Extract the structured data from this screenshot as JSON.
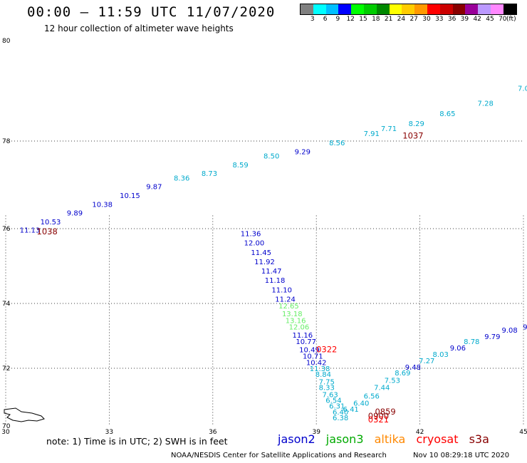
{
  "header": {
    "title": "00:00 – 11:59 UTC 11/07/2020",
    "subtitle": "12 hour collection of altimeter wave heights"
  },
  "colorbar": {
    "unit": "(ft)",
    "colors": [
      "#808080",
      "#00ffff",
      "#00bfff",
      "#0000ff",
      "#00ff00",
      "#00cc00",
      "#008800",
      "#ffff00",
      "#ffcc00",
      "#ff9900",
      "#ff0000",
      "#cc0000",
      "#880000",
      "#990099",
      "#bb99ff",
      "#ff88ff",
      "#000000"
    ],
    "labels": [
      "3",
      "6",
      "9",
      "12",
      "15",
      "18",
      "21",
      "24",
      "27",
      "30",
      "33",
      "36",
      "39",
      "42",
      "45",
      "70"
    ]
  },
  "axes": {
    "lon_ticks": [
      "30",
      "33",
      "36",
      "39",
      "42",
      "45"
    ],
    "lat_ticks": [
      "70",
      "72",
      "74",
      "76",
      "78",
      "80"
    ],
    "lon_range": [
      30,
      45
    ],
    "lat_range": [
      70,
      80
    ],
    "grid": true
  },
  "satellite_colors": {
    "jason2": "#0000cc",
    "jason3": "#00aa00",
    "altika": "#ff8800",
    "cryosat": "#ff0000",
    "s3a": "#880000",
    "track_cyan": "#00aacc",
    "track_green": "#66ee66"
  },
  "tracks": [
    {
      "color": "#00aacc",
      "label": "7.0",
      "lon": 45.0,
      "lat": 79.0
    },
    {
      "color": "#00aacc",
      "label": "7.28",
      "lon": 43.9,
      "lat": 78.7
    },
    {
      "color": "#00aacc",
      "label": "8.65",
      "lon": 42.8,
      "lat": 78.5
    },
    {
      "color": "#00aacc",
      "label": "8.29",
      "lon": 41.9,
      "lat": 78.3
    },
    {
      "color": "#00aacc",
      "label": "7.71",
      "lon": 41.1,
      "lat": 78.2
    },
    {
      "color": "#00aacc",
      "label": "7.91",
      "lon": 40.6,
      "lat": 78.1
    },
    {
      "color": "#00aacc",
      "label": "8.56",
      "lon": 39.6,
      "lat": 77.9
    },
    {
      "color": "#0000cc",
      "label": "9.29",
      "lon": 38.6,
      "lat": 77.7
    },
    {
      "color": "#00aacc",
      "label": "8.50",
      "lon": 37.7,
      "lat": 77.6
    },
    {
      "color": "#00aacc",
      "label": "8.59",
      "lon": 36.8,
      "lat": 77.4
    },
    {
      "color": "#00aacc",
      "label": "8.73",
      "lon": 35.9,
      "lat": 77.2
    },
    {
      "color": "#00aacc",
      "label": "8.36",
      "lon": 35.1,
      "lat": 77.1
    },
    {
      "color": "#0000cc",
      "label": "9.87",
      "lon": 34.3,
      "lat": 76.9
    },
    {
      "color": "#0000cc",
      "label": "10.15",
      "lon": 33.6,
      "lat": 76.7
    },
    {
      "color": "#0000cc",
      "label": "10.38",
      "lon": 32.8,
      "lat": 76.5
    },
    {
      "color": "#0000cc",
      "label": "9.89",
      "lon": 32.0,
      "lat": 76.3
    },
    {
      "color": "#0000cc",
      "label": "10.53",
      "lon": 31.3,
      "lat": 76.1
    },
    {
      "color": "#0000cc",
      "label": "11.13",
      "lon": 30.7,
      "lat": 75.9
    },
    {
      "color": "#0000cc",
      "label": "11.36",
      "lon": 37.1,
      "lat": 75.8
    },
    {
      "color": "#0000cc",
      "label": "12.00",
      "lon": 37.2,
      "lat": 75.55
    },
    {
      "color": "#0000cc",
      "label": "11.45",
      "lon": 37.4,
      "lat": 75.3
    },
    {
      "color": "#0000cc",
      "label": "11.92",
      "lon": 37.5,
      "lat": 75.05
    },
    {
      "color": "#0000cc",
      "label": "11.47",
      "lon": 37.7,
      "lat": 74.8
    },
    {
      "color": "#0000cc",
      "label": "11.18",
      "lon": 37.8,
      "lat": 74.55
    },
    {
      "color": "#0000cc",
      "label": "11.10",
      "lon": 38.0,
      "lat": 74.3
    },
    {
      "color": "#0000cc",
      "label": "11.24",
      "lon": 38.1,
      "lat": 74.05
    },
    {
      "color": "#66ee66",
      "label": "12.65",
      "lon": 38.2,
      "lat": 73.85
    },
    {
      "color": "#66ee66",
      "label": "13.18",
      "lon": 38.3,
      "lat": 73.6
    },
    {
      "color": "#66ee66",
      "label": "13.16",
      "lon": 38.4,
      "lat": 73.4
    },
    {
      "color": "#66ee66",
      "label": "12.06",
      "lon": 38.5,
      "lat": 73.2
    },
    {
      "color": "#0000cc",
      "label": "11.16",
      "lon": 38.6,
      "lat": 72.95
    },
    {
      "color": "#0000cc",
      "label": "10.77",
      "lon": 38.7,
      "lat": 72.75
    },
    {
      "color": "#0000cc",
      "label": "10.49",
      "lon": 38.8,
      "lat": 72.5
    },
    {
      "color": "#0000cc",
      "label": "10.71",
      "lon": 38.9,
      "lat": 72.3
    },
    {
      "color": "#0000cc",
      "label": "10.42",
      "lon": 39.0,
      "lat": 72.1
    },
    {
      "color": "#00aacc",
      "label": "11.38",
      "lon": 39.1,
      "lat": 71.9
    },
    {
      "color": "#00aacc",
      "label": "8.84",
      "lon": 39.2,
      "lat": 71.7
    },
    {
      "color": "#00aacc",
      "label": "7.75",
      "lon": 39.3,
      "lat": 71.45
    },
    {
      "color": "#00aacc",
      "label": "8.33",
      "lon": 39.3,
      "lat": 71.25
    },
    {
      "color": "#00aacc",
      "label": "7.63",
      "lon": 39.4,
      "lat": 71.0
    },
    {
      "color": "#00aacc",
      "label": "6.54",
      "lon": 39.5,
      "lat": 70.8
    },
    {
      "color": "#00aacc",
      "label": "6.31",
      "lon": 39.6,
      "lat": 70.6
    },
    {
      "color": "#00aacc",
      "label": "6.40",
      "lon": 39.7,
      "lat": 70.4
    },
    {
      "color": "#00aacc",
      "label": "6.38",
      "lon": 39.7,
      "lat": 70.2
    },
    {
      "color": "#00aacc",
      "label": "6.41",
      "lon": 40.0,
      "lat": 70.5
    },
    {
      "color": "#00aacc",
      "label": "6.40",
      "lon": 40.3,
      "lat": 70.7
    },
    {
      "color": "#00aacc",
      "label": "6.56",
      "lon": 40.6,
      "lat": 70.95
    },
    {
      "color": "#00aacc",
      "label": "7.44",
      "lon": 40.9,
      "lat": 71.25
    },
    {
      "color": "#00aacc",
      "label": "7.53",
      "lon": 41.2,
      "lat": 71.5
    },
    {
      "color": "#00aacc",
      "label": "8.69",
      "lon": 41.5,
      "lat": 71.75
    },
    {
      "color": "#0000cc",
      "label": "9.48",
      "lon": 41.8,
      "lat": 71.95
    },
    {
      "color": "#00aacc",
      "label": "7.27",
      "lon": 42.2,
      "lat": 72.15
    },
    {
      "color": "#00aacc",
      "label": "8.03",
      "lon": 42.6,
      "lat": 72.35
    },
    {
      "color": "#0000cc",
      "label": "9.06",
      "lon": 43.1,
      "lat": 72.55
    },
    {
      "color": "#00aacc",
      "label": "8.78",
      "lon": 43.5,
      "lat": 72.75
    },
    {
      "color": "#0000cc",
      "label": "9.79",
      "lon": 44.1,
      "lat": 72.9
    },
    {
      "color": "#0000cc",
      "label": "9.08",
      "lon": 44.6,
      "lat": 73.1
    },
    {
      "color": "#0000cc",
      "label": "9",
      "lon": 45.05,
      "lat": 73.2
    }
  ],
  "times": [
    {
      "label": "1037",
      "lon": 41.8,
      "lat": 78.05,
      "color": "#880000"
    },
    {
      "label": "1038",
      "lon": 31.2,
      "lat": 75.85,
      "color": "#880000"
    },
    {
      "label": "0322",
      "lon": 39.3,
      "lat": 72.5,
      "color": "#ff0000"
    },
    {
      "label": "0859",
      "lon": 41.0,
      "lat": 70.4,
      "color": "#880000"
    },
    {
      "label": "0900",
      "lon": 40.8,
      "lat": 70.25,
      "color": "#880000"
    },
    {
      "label": "0321",
      "lon": 40.8,
      "lat": 70.12,
      "color": "#ff0000"
    }
  ],
  "footer": {
    "note": "note: 1) Time is in UTC; 2) SWH is in feet",
    "legend": [
      "jason2",
      "jason3",
      "altika",
      "cryosat",
      "s3a"
    ],
    "credit": "NOAA/NESDIS Center for Satellite Applications and Research",
    "timestamp": "Nov 10 08:29:18 UTC 2020"
  }
}
